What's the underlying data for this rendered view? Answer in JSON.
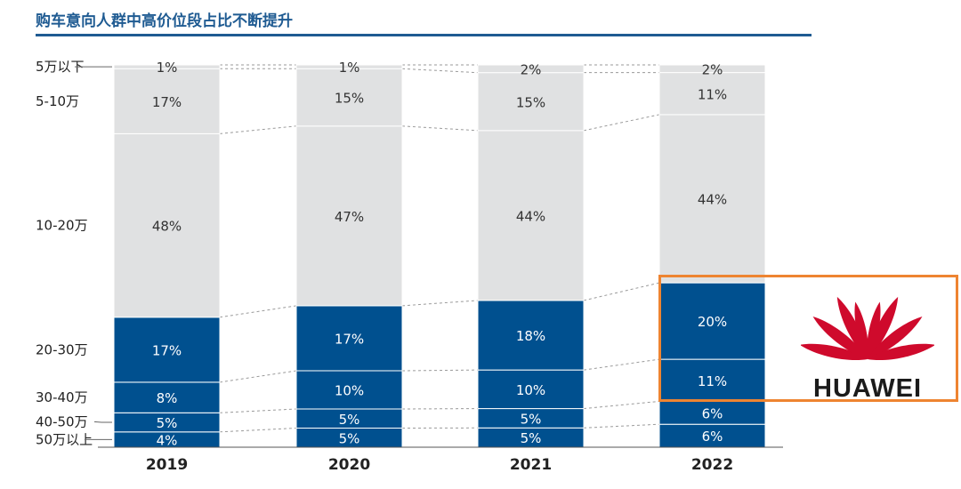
{
  "title": "购车意向人群中高价位段占比不断提升",
  "logo_text": "HUAWEI",
  "chart_data": {
    "type": "bar",
    "stacked": true,
    "percent": true,
    "categories": [
      "2019",
      "2020",
      "2021",
      "2022"
    ],
    "series": [
      {
        "name": "50万以上",
        "values": [
          4,
          5,
          5,
          6
        ],
        "color": "#00508f"
      },
      {
        "name": "40-50万",
        "values": [
          5,
          5,
          5,
          6
        ],
        "color": "#00508f"
      },
      {
        "name": "30-40万",
        "values": [
          8,
          10,
          10,
          11
        ],
        "color": "#00508f"
      },
      {
        "name": "20-30万",
        "values": [
          17,
          17,
          18,
          20
        ],
        "color": "#00508f"
      },
      {
        "name": "10-20万",
        "values": [
          48,
          47,
          44,
          44
        ],
        "color": "#e0e1e2"
      },
      {
        "name": "5-10万",
        "values": [
          17,
          15,
          15,
          11
        ],
        "color": "#e0e1e2"
      },
      {
        "name": "5万以下",
        "values": [
          1,
          1,
          2,
          2
        ],
        "color": "#e0e1e2"
      }
    ],
    "ylim": [
      0,
      100
    ],
    "legend": "left",
    "highlight": "2022 20-30万 and 30-40万 segments",
    "colors": {
      "high_segment": "#00508f",
      "low_segment": "#e0e1e2",
      "highlight_border": "#ee8431",
      "title": "#1f5b92",
      "logo_red": "#cf0a2c"
    }
  }
}
